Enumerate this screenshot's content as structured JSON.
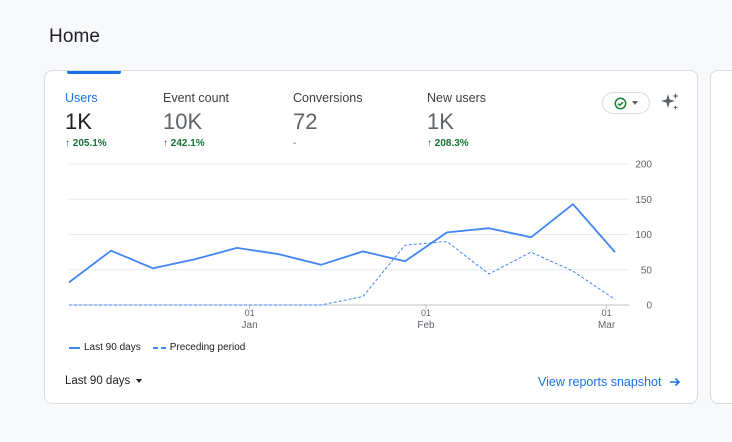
{
  "page": {
    "title": "Home"
  },
  "metrics": [
    {
      "label": "Users",
      "value": "1K",
      "change": "205.1%",
      "trend": "up"
    },
    {
      "label": "Event count",
      "value": "10K",
      "change": "242.1%",
      "trend": "up"
    },
    {
      "label": "Conversions",
      "value": "72",
      "change": "-",
      "trend": "none"
    },
    {
      "label": "New users",
      "value": "1K",
      "change": "208.3%",
      "trend": "up"
    }
  ],
  "colors": {
    "accent": "#1a73e8",
    "line": "#4285f4",
    "positive": "#137333",
    "check": "#188038"
  },
  "controls": {
    "compare_icon": "check-circle-icon",
    "insights_icon": "sparkle-icon"
  },
  "chart_data": {
    "type": "line",
    "y_ticks": [
      200,
      150,
      100,
      50,
      0
    ],
    "ylim": [
      0,
      200
    ],
    "x_ticks": [
      {
        "day": "01",
        "month": "Jan",
        "index": 4.3
      },
      {
        "day": "01",
        "month": "Feb",
        "index": 8.5
      },
      {
        "day": "01",
        "month": "Mar",
        "index": 12.8
      }
    ],
    "series": [
      {
        "name": "Last 90 days",
        "style": "solid",
        "values": [
          32,
          77,
          52,
          65,
          81,
          72,
          57,
          76,
          62,
          103,
          109,
          96,
          143,
          75
        ]
      },
      {
        "name": "Preceding period",
        "style": "dashed",
        "values": [
          0,
          0,
          0,
          0,
          0,
          0,
          0,
          12,
          85,
          90,
          44,
          75,
          48,
          8
        ]
      }
    ]
  },
  "footer": {
    "date_range": "Last 90 days",
    "link": "View reports snapshot"
  }
}
